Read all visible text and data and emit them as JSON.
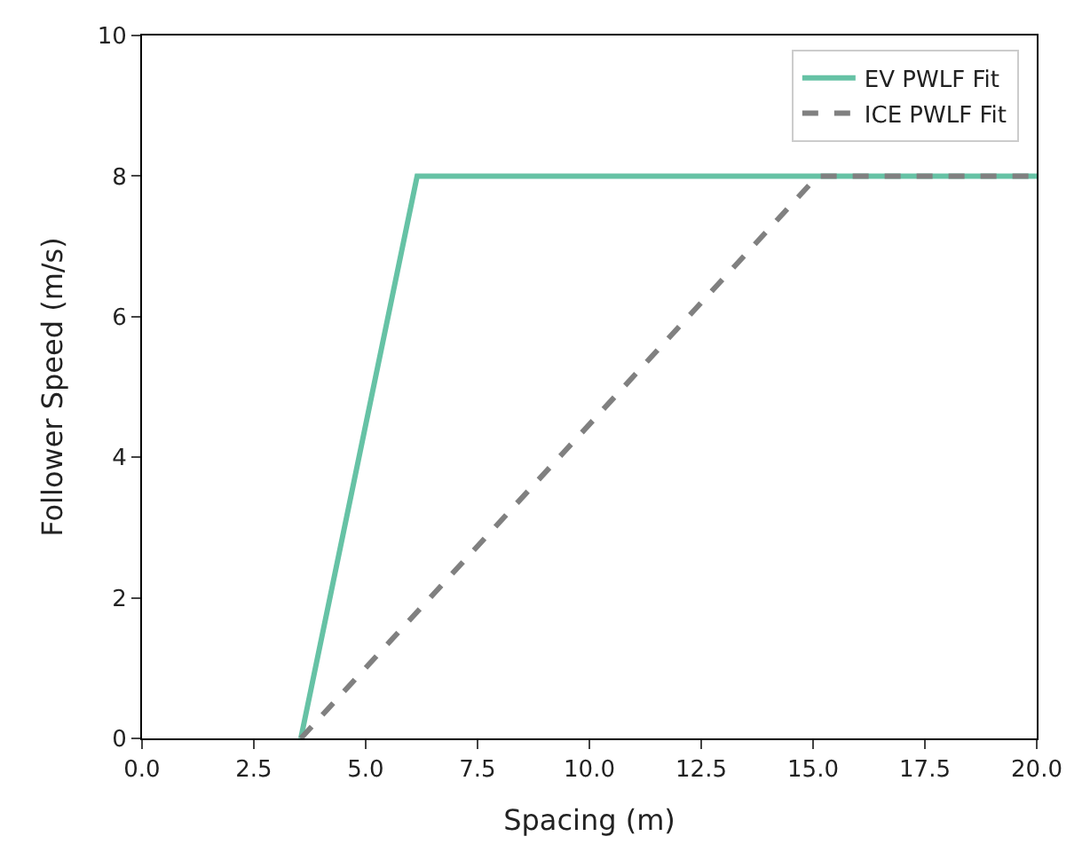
{
  "chart_data": {
    "type": "line",
    "xlabel": "Spacing (m)",
    "ylabel": "Follower Speed (m/s)",
    "series": [
      {
        "name": "EV PWLF Fit",
        "color": "#66c2a5",
        "x": [
          3.55,
          6.15,
          20.0
        ],
        "values": [
          0,
          8,
          8
        ],
        "line_style": "solid"
      },
      {
        "name": "ICE PWLF Fit",
        "color": "#808080",
        "x": [
          3.55,
          15.1,
          20.0
        ],
        "values": [
          0,
          8,
          8
        ],
        "line_style": "dashed"
      }
    ],
    "xlim": [
      0,
      20
    ],
    "ylim": [
      0,
      10
    ],
    "xticks": [
      {
        "value": 0,
        "label": "0.0"
      },
      {
        "value": 2.5,
        "label": "2.5"
      },
      {
        "value": 5,
        "label": "5.0"
      },
      {
        "value": 7.5,
        "label": "7.5"
      },
      {
        "value": 10,
        "label": "10.0"
      },
      {
        "value": 12.5,
        "label": "12.5"
      },
      {
        "value": 15,
        "label": "15.0"
      },
      {
        "value": 17.5,
        "label": "17.5"
      },
      {
        "value": 20,
        "label": "20.0"
      }
    ],
    "yticks": [
      0,
      2,
      4,
      6,
      8,
      10
    ],
    "legend": "top right",
    "marker": "none"
  }
}
